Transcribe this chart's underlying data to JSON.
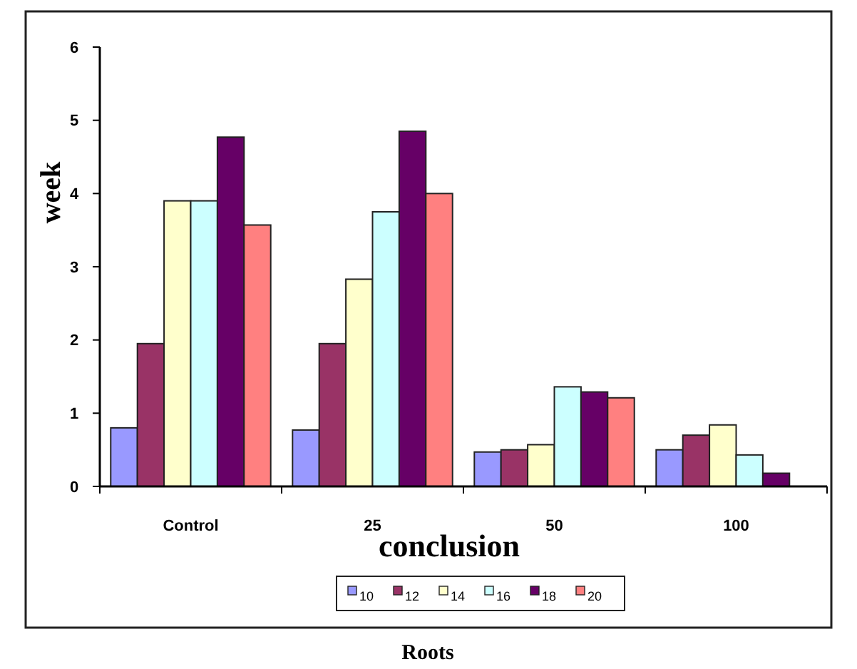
{
  "chart_data": {
    "type": "bar",
    "title": "Roots",
    "xlabel": "conclusion",
    "ylabel": "week",
    "categories": [
      "Control",
      "25",
      "50",
      "100"
    ],
    "series": [
      {
        "name": "10",
        "color": "#9999ff",
        "values": [
          0.8,
          0.77,
          0.47,
          0.5
        ]
      },
      {
        "name": "12",
        "color": "#993366",
        "values": [
          1.95,
          1.95,
          0.5,
          0.7
        ]
      },
      {
        "name": "14",
        "color": "#ffffcc",
        "values": [
          3.9,
          2.83,
          0.57,
          0.84
        ]
      },
      {
        "name": "16",
        "color": "#ccffff",
        "values": [
          3.9,
          3.75,
          1.36,
          0.43
        ]
      },
      {
        "name": "18",
        "color": "#660066",
        "values": [
          4.77,
          4.85,
          1.29,
          0.18
        ]
      },
      {
        "name": "20",
        "color": "#ff8080",
        "values": [
          3.57,
          4.0,
          1.21,
          null
        ]
      }
    ],
    "ylim": [
      0,
      6
    ],
    "yticks": [
      0,
      1,
      2,
      3,
      4,
      5,
      6
    ],
    "grid": false,
    "legend": "bottom"
  }
}
